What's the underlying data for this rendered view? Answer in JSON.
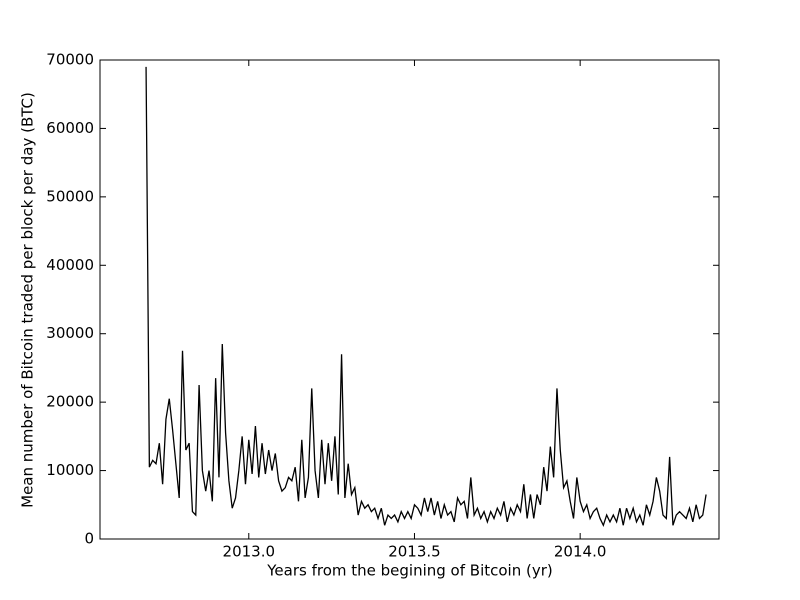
{
  "chart_data": {
    "type": "line",
    "xlabel": "Years from the begining of Bitcoin (yr)",
    "ylabel": "Mean number of Bitcoin traded per block per day (BTC)",
    "color": "#000000",
    "x": [
      2012.69,
      2012.7,
      2012.71,
      2012.72,
      2012.73,
      2012.74,
      2012.75,
      2012.76,
      2012.77,
      2012.78,
      2012.79,
      2012.8,
      2012.81,
      2012.82,
      2012.83,
      2012.84,
      2012.85,
      2012.86,
      2012.87,
      2012.88,
      2012.89,
      2012.9,
      2012.91,
      2012.92,
      2012.93,
      2012.94,
      2012.95,
      2012.96,
      2012.97,
      2012.98,
      2012.99,
      2013.0,
      2013.01,
      2013.02,
      2013.03,
      2013.04,
      2013.05,
      2013.06,
      2013.07,
      2013.08,
      2013.09,
      2013.1,
      2013.11,
      2013.12,
      2013.13,
      2013.14,
      2013.15,
      2013.16,
      2013.17,
      2013.18,
      2013.19,
      2013.2,
      2013.21,
      2013.22,
      2013.23,
      2013.24,
      2013.25,
      2013.26,
      2013.27,
      2013.28,
      2013.29,
      2013.3,
      2013.31,
      2013.32,
      2013.33,
      2013.34,
      2013.35,
      2013.36,
      2013.37,
      2013.38,
      2013.39,
      2013.4,
      2013.41,
      2013.42,
      2013.43,
      2013.44,
      2013.45,
      2013.46,
      2013.47,
      2013.48,
      2013.49,
      2013.5,
      2013.51,
      2013.52,
      2013.53,
      2013.54,
      2013.55,
      2013.56,
      2013.57,
      2013.58,
      2013.59,
      2013.6,
      2013.61,
      2013.62,
      2013.63,
      2013.64,
      2013.65,
      2013.66,
      2013.67,
      2013.68,
      2013.69,
      2013.7,
      2013.71,
      2013.72,
      2013.73,
      2013.74,
      2013.75,
      2013.76,
      2013.77,
      2013.78,
      2013.79,
      2013.8,
      2013.81,
      2013.82,
      2013.83,
      2013.84,
      2013.85,
      2013.86,
      2013.87,
      2013.88,
      2013.89,
      2013.9,
      2013.91,
      2013.92,
      2013.93,
      2013.94,
      2013.95,
      2013.96,
      2013.97,
      2013.98,
      2013.99,
      2014.0,
      2014.01,
      2014.02,
      2014.03,
      2014.04,
      2014.05,
      2014.06,
      2014.07,
      2014.08,
      2014.09,
      2014.1,
      2014.11,
      2014.12,
      2014.13,
      2014.14,
      2014.15,
      2014.16,
      2014.17,
      2014.18,
      2014.19,
      2014.2,
      2014.21,
      2014.22,
      2014.23,
      2014.24,
      2014.25,
      2014.26,
      2014.27,
      2014.28,
      2014.29,
      2014.3,
      2014.31,
      2014.32,
      2014.33,
      2014.34,
      2014.35,
      2014.36,
      2014.37,
      2014.38
    ],
    "values": [
      69000,
      10500,
      11500,
      11000,
      14000,
      8000,
      17500,
      20500,
      16000,
      11000,
      6000,
      27500,
      13000,
      14000,
      4000,
      3500,
      22500,
      10000,
      7000,
      10000,
      5500,
      23500,
      9000,
      28500,
      15500,
      8500,
      4500,
      6000,
      10000,
      15000,
      8000,
      14500,
      9500,
      16500,
      9000,
      14000,
      9500,
      13000,
      10000,
      12500,
      8500,
      7000,
      7500,
      9000,
      8500,
      10500,
      5500,
      14500,
      6000,
      9000,
      22000,
      10000,
      6000,
      14500,
      8000,
      14000,
      8500,
      15000,
      6500,
      27000,
      6000,
      11000,
      6500,
      7500,
      3500,
      5500,
      4500,
      5000,
      4000,
      4500,
      3000,
      4500,
      2000,
      3500,
      3000,
      3500,
      2500,
      4000,
      3000,
      4000,
      3000,
      5000,
      4500,
      3500,
      6000,
      4000,
      6000,
      3500,
      5500,
      3000,
      5000,
      3500,
      4000,
      2500,
      6000,
      5000,
      5500,
      3000,
      9000,
      3500,
      4500,
      3000,
      4000,
      2500,
      4000,
      3000,
      4500,
      3500,
      5500,
      2500,
      4500,
      3500,
      5000,
      4000,
      8000,
      3000,
      6500,
      3000,
      6500,
      5000,
      10500,
      7000,
      13500,
      9000,
      22000,
      13000,
      7500,
      8500,
      5500,
      3000,
      9000,
      5500,
      4000,
      5000,
      3000,
      4000,
      4500,
      3000,
      2000,
      3500,
      2500,
      3500,
      2500,
      4500,
      2000,
      4500,
      3000,
      4500,
      2500,
      3500,
      2000,
      5000,
      3500,
      5500,
      9000,
      7000,
      3500,
      3000,
      12000,
      2000,
      3500,
      4000,
      3500,
      3000,
      4500,
      2500,
      5000,
      3000,
      3500,
      6500
    ],
    "xlim": [
      2012.551,
      2014.419
    ],
    "ylim": [
      0,
      70000
    ],
    "xticks": [
      {
        "value": 2013,
        "label": "2013.0"
      },
      {
        "value": 2013.5,
        "label": "2013.5"
      },
      {
        "value": 2014,
        "label": "2014.0"
      }
    ],
    "yticks": [
      0,
      10000,
      20000,
      30000,
      40000,
      50000,
      60000,
      70000
    ],
    "grid": false
  }
}
